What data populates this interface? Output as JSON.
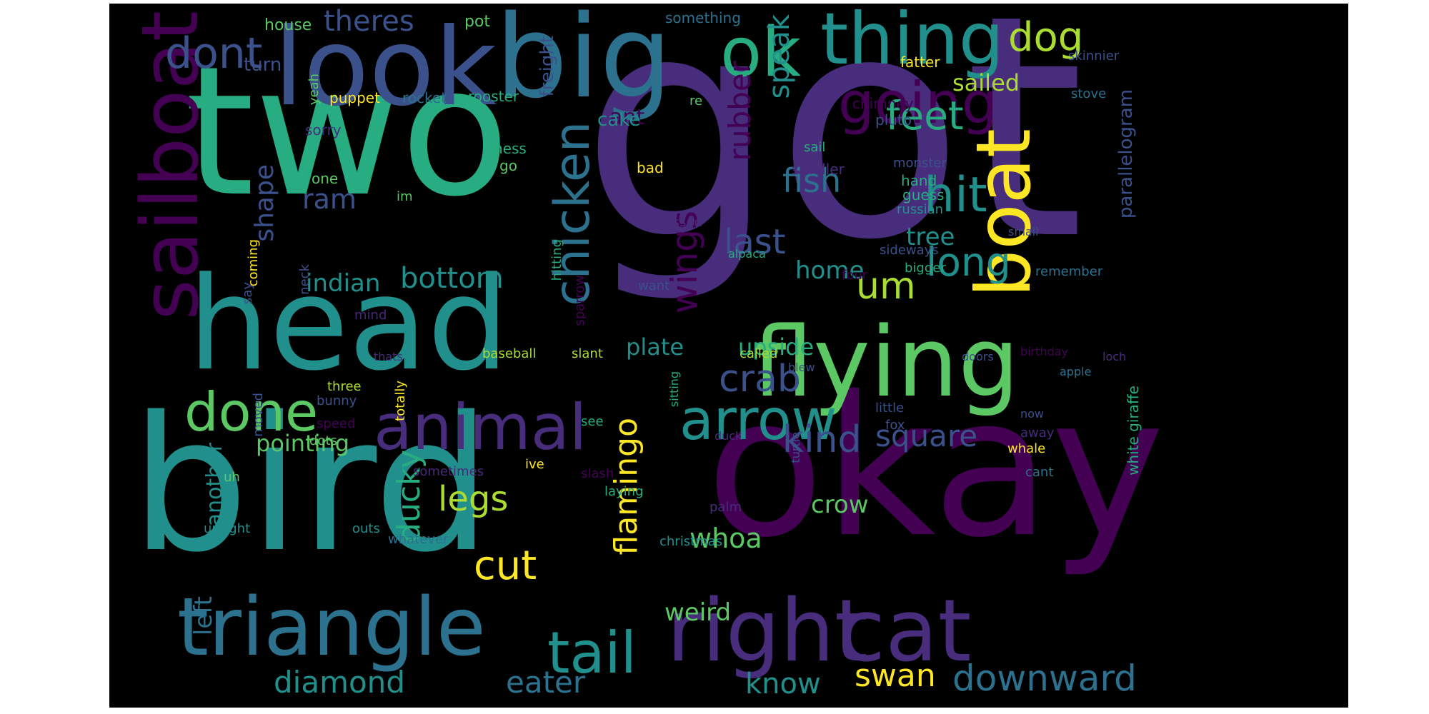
{
  "words": [
    "got",
    "two",
    "bird",
    "okay",
    "head",
    "look",
    "big",
    "flying",
    "right",
    "cat",
    "triangle",
    "sailboat",
    "boat",
    "thing",
    "ok",
    "animal",
    "done",
    "tail",
    "arrow",
    "chicken",
    "going",
    "hit",
    "dont",
    "dog",
    "feet",
    "long",
    "um",
    "crab",
    "kind",
    "fish",
    "last",
    "wings",
    "flamingo",
    "legs",
    "cut",
    "square",
    "ducky",
    "theres",
    "speak",
    "rubber",
    "bottom",
    "ram",
    "indian",
    "home",
    "tree",
    "upside",
    "plate",
    "crow",
    "whoa",
    "swan",
    "downward",
    "diamond",
    "eater",
    "know",
    "weird",
    "pointing",
    "shape",
    "left",
    "another",
    "ant",
    "sailed",
    "parallelogram",
    "freight",
    "cake",
    "house",
    "pot",
    "something",
    "turn",
    "fatter",
    "skinnier",
    "puppet",
    "rocket",
    "rooster",
    "re",
    "chimney",
    "stove",
    "yeah",
    "sorry",
    "pluto",
    "ness",
    "go",
    "sail",
    "smaller",
    "monster",
    "hand",
    "guess",
    "russian",
    "bad",
    "one",
    "im",
    "messed",
    "small",
    "sideways",
    "alpaca",
    "coming",
    "hitting",
    "sparrow",
    "say",
    "neck",
    "bigger",
    "remember",
    "want",
    "four",
    "mind",
    "baseball",
    "slant",
    "called",
    "thats",
    "doors",
    "birthday",
    "loch",
    "apple",
    "blew",
    "three",
    "bunny",
    "totally",
    "sitting",
    "speed",
    "moved",
    "dots",
    "see",
    "little",
    "fox",
    "now",
    "away",
    "duck",
    "turtle",
    "whale",
    "white giraffe",
    "sometimes",
    "ive",
    "uh",
    "cant",
    "slash",
    "laying",
    "upright",
    "outs",
    "whatever",
    "christmas",
    "palm"
  ]
}
